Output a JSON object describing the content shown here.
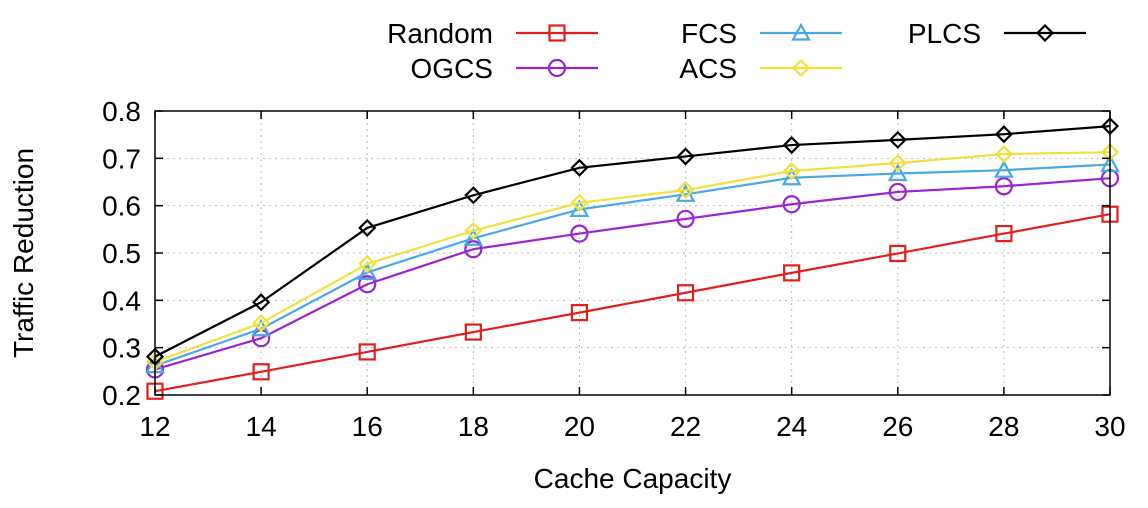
{
  "chart_data": {
    "type": "line",
    "title": "",
    "xlabel": "Cache Capacity",
    "ylabel": "Traffic Reduction",
    "x": [
      12,
      14,
      16,
      18,
      20,
      22,
      24,
      26,
      28,
      30
    ],
    "xlim": [
      12,
      30
    ],
    "ylim": [
      0.2,
      0.8
    ],
    "xticks": [
      "12",
      "14",
      "16",
      "18",
      "20",
      "22",
      "24",
      "26",
      "28",
      "30"
    ],
    "yticks": [
      "0.2",
      "0.3",
      "0.4",
      "0.5",
      "0.6",
      "0.7",
      "0.8"
    ],
    "grid": true,
    "legend_position": "top",
    "series": [
      {
        "name": "Random",
        "color": "#e0201c",
        "marker": "square",
        "values": [
          0.208,
          0.249,
          0.291,
          0.333,
          0.374,
          0.416,
          0.458,
          0.499,
          0.541,
          0.582
        ]
      },
      {
        "name": "OGCS",
        "color": "#9a24d4",
        "marker": "circle",
        "values": [
          0.254,
          0.32,
          0.434,
          0.508,
          0.541,
          0.572,
          0.603,
          0.629,
          0.641,
          0.658
        ]
      },
      {
        "name": "FCS",
        "color": "#4aa8e2",
        "marker": "triangle",
        "values": [
          0.262,
          0.34,
          0.459,
          0.531,
          0.592,
          0.624,
          0.659,
          0.668,
          0.675,
          0.687
        ]
      },
      {
        "name": "ACS",
        "color": "#f2e13c",
        "marker": "diamond",
        "values": [
          0.27,
          0.352,
          0.477,
          0.547,
          0.606,
          0.633,
          0.673,
          0.69,
          0.709,
          0.713
        ]
      },
      {
        "name": "PLCS",
        "color": "#000000",
        "marker": "diamond",
        "values": [
          0.281,
          0.396,
          0.553,
          0.622,
          0.68,
          0.704,
          0.728,
          0.739,
          0.751,
          0.768
        ]
      }
    ]
  }
}
